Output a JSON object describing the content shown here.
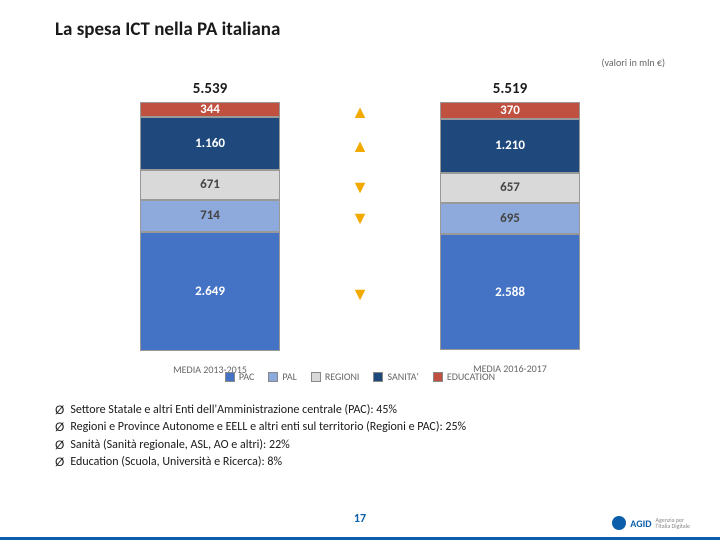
{
  "title": "La spesa ICT nella PA italiana",
  "subtitle": "(valori in mln €)",
  "chart": {
    "type": "stacked-bar",
    "total_fontsize": 15,
    "scale": 0.045,
    "columns": [
      {
        "key": "left",
        "total": "5.539",
        "xlabel": "MEDIA 2013-2015",
        "segments": [
          {
            "label": "344",
            "value": 344,
            "bg": "#c05040",
            "fg": "#ffffff"
          },
          {
            "label": "1.160",
            "value": 1160,
            "bg": "#1f497d",
            "fg": "#ffffff"
          },
          {
            "label": "671",
            "value": 671,
            "bg": "#d9d9d9",
            "fg": "#444444"
          },
          {
            "label": "714",
            "value": 714,
            "bg": "#8ea9db",
            "fg": "#444444"
          },
          {
            "label": "2.649",
            "value": 2649,
            "bg": "#4472c4",
            "fg": "#ffffff"
          }
        ]
      },
      {
        "key": "right",
        "total": "5.519",
        "xlabel": "MEDIA 2016-2017",
        "segments": [
          {
            "label": "370",
            "value": 370,
            "bg": "#c05040",
            "fg": "#ffffff"
          },
          {
            "label": "1.210",
            "value": 1210,
            "bg": "#1f497d",
            "fg": "#ffffff"
          },
          {
            "label": "657",
            "value": 657,
            "bg": "#d9d9d9",
            "fg": "#444444"
          },
          {
            "label": "695",
            "value": 695,
            "bg": "#8ea9db",
            "fg": "#444444"
          },
          {
            "label": "2.588",
            "value": 2588,
            "bg": "#4472c4",
            "fg": "#ffffff"
          }
        ]
      }
    ],
    "arrows": [
      {
        "dir": "up",
        "seg_value": 344
      },
      {
        "dir": "up",
        "seg_value": 1160
      },
      {
        "dir": "down",
        "seg_value": 671
      },
      {
        "dir": "down",
        "seg_value": 714
      },
      {
        "dir": "down",
        "seg_value": 2649
      }
    ],
    "arrow_color": "#f2a900",
    "legend": [
      {
        "label": "PAC",
        "color": "#4472c4"
      },
      {
        "label": "PAL",
        "color": "#8ea9db"
      },
      {
        "label": "REGIONI",
        "color": "#d9d9d9"
      },
      {
        "label": "SANITA'",
        "color": "#1f497d"
      },
      {
        "label": "EDUCATION",
        "color": "#c05040"
      }
    ]
  },
  "bullets": [
    "Settore Statale e altri Enti dell'Amministrazione centrale (PAC): 45%",
    "Regioni e Province Autonome e EELL e altri enti sul territorio (Regioni e PAC): 25%",
    "Sanità (Sanità regionale, ASL, AO e altri): 22%",
    "Education (Scuola, Università e Ricerca):  8%"
  ],
  "bullet_marker": "Ø",
  "page_number": "17",
  "logo": {
    "text": "AGID",
    "sub1": "Agenzia per",
    "sub2": "l'Italia Digitale"
  }
}
